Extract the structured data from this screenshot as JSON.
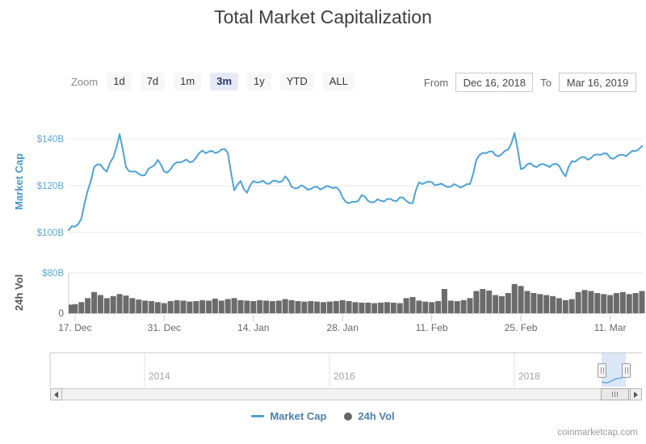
{
  "title": "Total Market Capitalization",
  "toolbar": {
    "zoom_label": "Zoom",
    "zoom_buttons": [
      {
        "label": "1d",
        "selected": false
      },
      {
        "label": "7d",
        "selected": false
      },
      {
        "label": "1m",
        "selected": false
      },
      {
        "label": "3m",
        "selected": true
      },
      {
        "label": "1y",
        "selected": false
      },
      {
        "label": "YTD",
        "selected": false
      },
      {
        "label": "ALL",
        "selected": false
      }
    ],
    "from_label": "From",
    "from_value": "Dec 16, 2018",
    "to_label": "To",
    "to_value": "Mar 16, 2019"
  },
  "legend": {
    "market_cap_label": "Market Cap",
    "vol_label": "24h Vol"
  },
  "navigator": {
    "year_labels": [
      "2014",
      "2016",
      "2018"
    ]
  },
  "footer": {
    "watermark": "coinmarketcap.com"
  },
  "colors": {
    "line_blue": "#4da3d9",
    "axis_label_blue": "#5aa7d6",
    "axis_title_blue": "#4a98c9",
    "volume_gray": "#6b6b6b",
    "legend_text": "#4a7fae",
    "gridline": "#e7e7e7",
    "x_label_gray": "#666666",
    "selected_button_bg": "#e6eaf6"
  },
  "chart_data": [
    {
      "type": "line",
      "name": "Market Cap",
      "ylabel": "Market Cap",
      "unit": "$B",
      "start_date": "Dec 16, 2018",
      "end_date": "Mar 16, 2019",
      "x_tick_labels": [
        "17. Dec",
        "31. Dec",
        "14. Jan",
        "28. Jan",
        "11. Feb",
        "25. Feb",
        "11. Mar"
      ],
      "x_tick_days": [
        1,
        15,
        29,
        43,
        57,
        71,
        85
      ],
      "y_tick_labels": [
        "$100B",
        "$120B",
        "$140B"
      ],
      "y_tick_values": [
        100,
        120,
        140
      ],
      "ylim": [
        98,
        148
      ],
      "grid": true,
      "values": [
        101,
        102.5,
        106,
        118,
        128,
        129,
        126,
        132,
        142,
        128,
        126,
        125,
        124.5,
        128,
        131,
        126,
        127,
        130,
        130.5,
        130,
        132,
        135,
        134.5,
        134,
        135.5,
        134,
        118,
        122,
        117,
        122,
        121.5,
        121,
        122,
        121.5,
        124,
        119.5,
        119,
        119.5,
        118.5,
        119.5,
        119,
        119.5,
        119.3,
        115,
        112.5,
        113,
        116,
        113.5,
        113,
        113.6,
        114.3,
        113.6,
        115,
        113.5,
        112.5,
        121.5,
        121.3,
        121.5,
        120.5,
        120,
        119.6,
        120,
        119.8,
        120.7,
        131,
        134,
        134.5,
        133,
        133.5,
        135.5,
        142.5,
        127,
        129.1,
        128.3,
        129,
        128.7,
        129.1,
        128.5,
        124,
        130.5,
        131.3,
        132.2,
        131.8,
        133.3,
        133.8,
        131.9,
        132.4,
        133.2,
        133.8,
        134.8,
        137
      ]
    },
    {
      "type": "bar",
      "name": "24h Vol",
      "ylabel": "24h Vol",
      "unit": "$B",
      "y_tick_labels": [
        "0",
        "$80B"
      ],
      "y_tick_values": [
        0,
        80
      ],
      "ylim": [
        0,
        80
      ],
      "grid": true,
      "values": [
        17,
        18,
        22,
        30,
        42,
        36,
        30,
        34,
        38,
        35,
        30,
        27,
        25,
        24,
        22,
        20,
        24,
        26,
        25,
        23,
        24,
        26,
        25,
        29,
        25,
        28,
        30,
        26,
        25,
        24,
        26,
        25,
        24,
        25,
        28,
        26,
        24,
        23,
        24,
        23,
        22,
        23,
        24,
        26,
        24,
        22,
        21,
        21,
        20,
        21,
        22,
        21,
        20,
        30,
        32,
        25,
        23,
        22,
        24,
        48,
        25,
        24,
        26,
        30,
        44,
        48,
        45,
        36,
        34,
        40,
        58,
        54,
        44,
        40,
        38,
        36,
        34,
        30,
        26,
        28,
        42,
        46,
        44,
        40,
        38,
        36,
        40,
        42,
        38,
        40,
        44
      ]
    }
  ]
}
